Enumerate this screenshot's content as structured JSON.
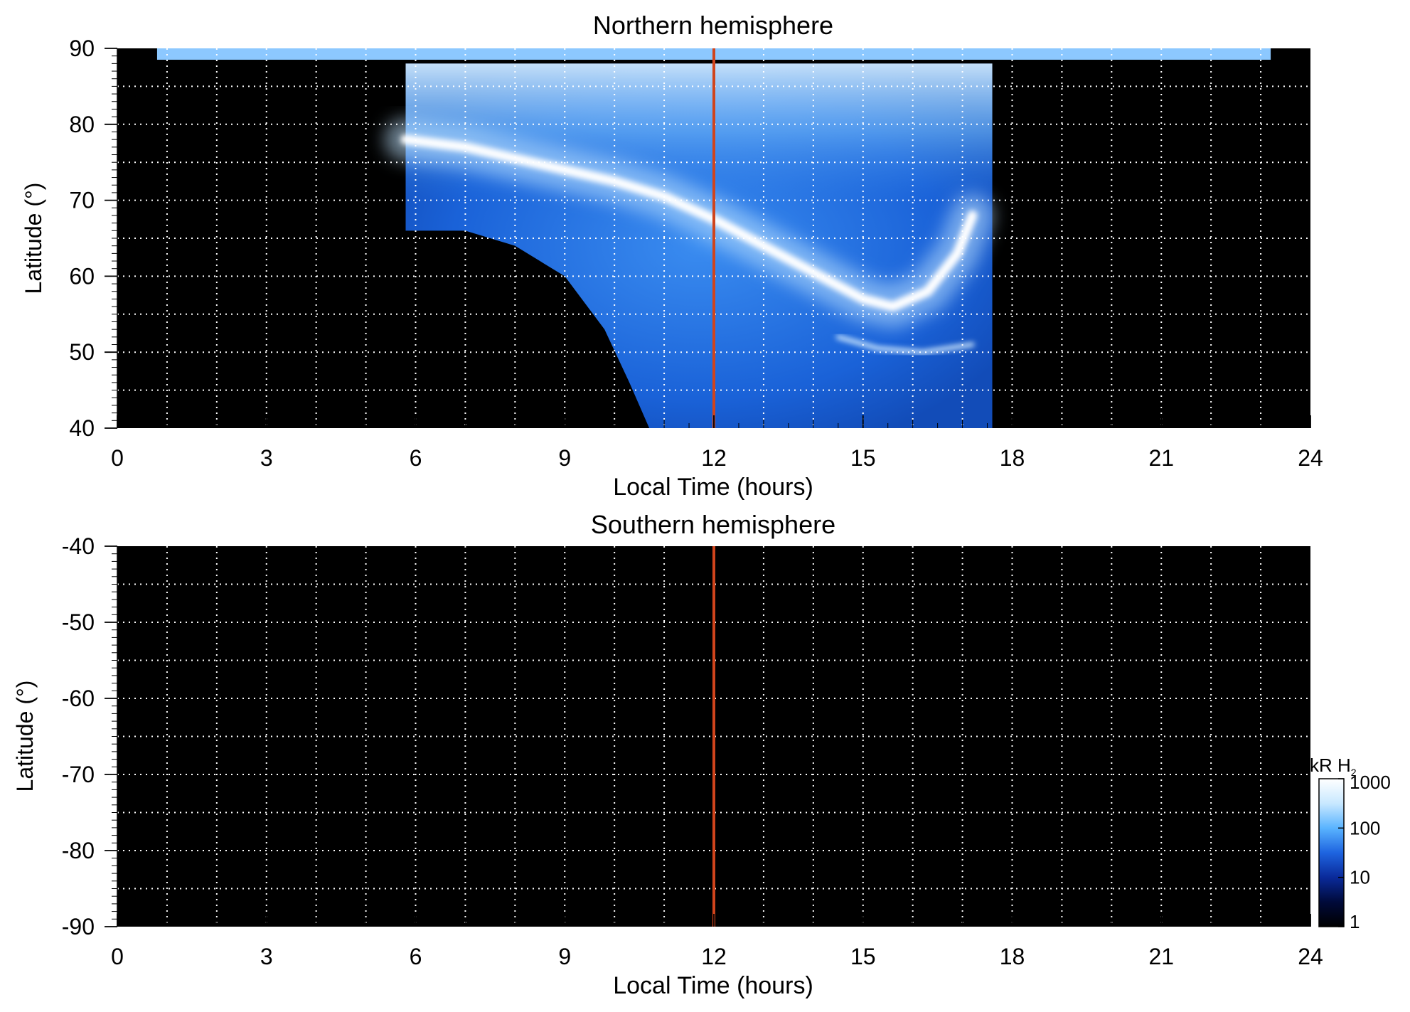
{
  "chart_data": [
    {
      "type": "heatmap",
      "title": "Northern hemisphere",
      "xlabel": "Local Time (hours)",
      "ylabel": "Latitude (°)",
      "xlim": [
        0,
        24
      ],
      "ylim": [
        40,
        90
      ],
      "x_ticks": [
        0,
        3,
        6,
        9,
        12,
        15,
        18,
        21,
        24
      ],
      "y_ticks": [
        40,
        50,
        60,
        70,
        80,
        90
      ],
      "x_gridlines": [
        1,
        2,
        3,
        4,
        5,
        6,
        7,
        8,
        9,
        10,
        11,
        12,
        13,
        14,
        15,
        16,
        17,
        18,
        19,
        20,
        21,
        22,
        23
      ],
      "y_gridlines": [
        45,
        50,
        55,
        60,
        65,
        70,
        75,
        80,
        85
      ],
      "grid": true,
      "reference_line": {
        "x": 12,
        "color": "#d0441c"
      },
      "coverage": {
        "lt_start": 5.8,
        "lt_end": 17.6,
        "top_lat": 88,
        "dawn_limb": [
          [
            5.8,
            66
          ],
          [
            7,
            66
          ],
          [
            8,
            64
          ],
          [
            9,
            60
          ],
          [
            9.8,
            53
          ],
          [
            10.3,
            46
          ],
          [
            10.7,
            40
          ]
        ],
        "polar_cap_band_lat": [
          88.5,
          90
        ],
        "polar_cap_band_lt": [
          0.8,
          23.2
        ]
      },
      "auroral_oval": [
        [
          5.8,
          78
        ],
        [
          7,
          77
        ],
        [
          8,
          75.5
        ],
        [
          9,
          74
        ],
        [
          10,
          72.5
        ],
        [
          11,
          70.5
        ],
        [
          12,
          67.5
        ],
        [
          13,
          64
        ],
        [
          14,
          60.5
        ],
        [
          15,
          57
        ],
        [
          15.6,
          56
        ],
        [
          16.3,
          58
        ],
        [
          16.9,
          63
        ],
        [
          17.2,
          68
        ]
      ],
      "secondary_arc": [
        [
          14.5,
          52
        ],
        [
          15.3,
          50.5
        ],
        [
          16.2,
          50
        ],
        [
          17.2,
          51
        ]
      ]
    },
    {
      "type": "heatmap",
      "title": "Southern hemisphere",
      "xlabel": "Local Time (hours)",
      "ylabel": "Latitude (°)",
      "xlim": [
        0,
        24
      ],
      "ylim": [
        -90,
        -40
      ],
      "x_ticks": [
        0,
        3,
        6,
        9,
        12,
        15,
        18,
        21,
        24
      ],
      "y_ticks": [
        -40,
        -50,
        -60,
        -70,
        -80,
        -90
      ],
      "x_gridlines": [
        1,
        2,
        3,
        4,
        5,
        6,
        7,
        8,
        9,
        10,
        11,
        12,
        13,
        14,
        15,
        16,
        17,
        18,
        19,
        20,
        21,
        22,
        23
      ],
      "y_gridlines": [
        -45,
        -50,
        -55,
        -60,
        -65,
        -70,
        -75,
        -80,
        -85
      ],
      "grid": true,
      "reference_line": {
        "x": 12,
        "color": "#d0441c"
      },
      "coverage": null
    }
  ],
  "colorbar": {
    "label_main": "kR H",
    "label_sub": "2",
    "scale": "log",
    "ticks": [
      "1000",
      "100",
      "10",
      "1"
    ],
    "tick_values": [
      1000,
      100,
      10,
      1
    ],
    "range": [
      1,
      1000
    ],
    "colors": [
      "#000000",
      "#000a3a",
      "#0a2a9a",
      "#1e64e0",
      "#5ab4ff",
      "#c8e8ff",
      "#ffffff"
    ]
  },
  "colors": {
    "background": "#000000",
    "grid": "#ffffff",
    "noon_line": "#d0441c",
    "emission_mid": "#1e6fe0",
    "emission_bright": "#ffffff"
  }
}
